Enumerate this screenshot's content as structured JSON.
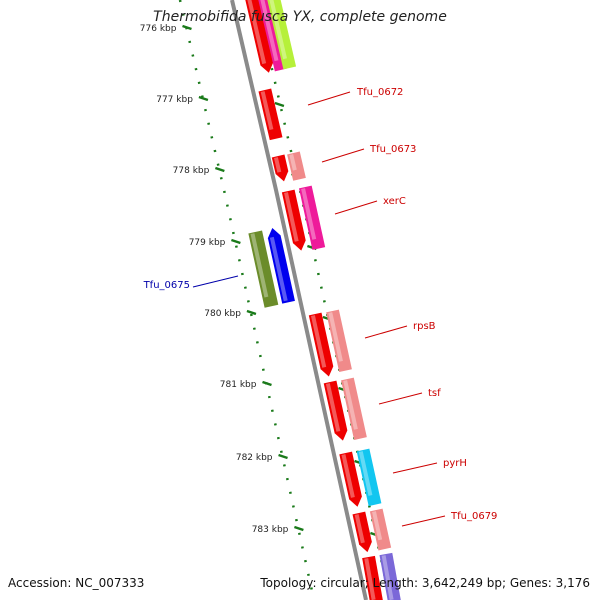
{
  "title": "Thermobifida fusca YX, complete genome",
  "footer": {
    "accession": "Accession: NC_007333",
    "summary": "Topology: circular; Length: 3,642,249 bp; Genes: 3,176"
  },
  "colors": {
    "backbone": "#8a8a8a",
    "tick": "#1a7a1a",
    "forward_label": "#cc0000",
    "reverse_label": "#0000aa"
  },
  "ticks": [
    {
      "label": "776 kbp"
    },
    {
      "label": "777 kbp"
    },
    {
      "label": "778 kbp"
    },
    {
      "label": "779 kbp"
    },
    {
      "label": "780 kbp"
    },
    {
      "label": "781 kbp"
    },
    {
      "label": "782 kbp"
    },
    {
      "label": "783 kbp"
    }
  ],
  "gene_labels": [
    {
      "text": "Tfu_0672",
      "strand": "forward"
    },
    {
      "text": "Tfu_0673",
      "strand": "forward"
    },
    {
      "text": "xerC",
      "strand": "forward"
    },
    {
      "text": "Tfu_0675",
      "strand": "reverse"
    },
    {
      "text": "rpsB",
      "strand": "forward"
    },
    {
      "text": "tsf",
      "strand": "forward"
    },
    {
      "text": "pyrH",
      "strand": "forward"
    },
    {
      "text": "Tfu_0679",
      "strand": "forward"
    }
  ]
}
